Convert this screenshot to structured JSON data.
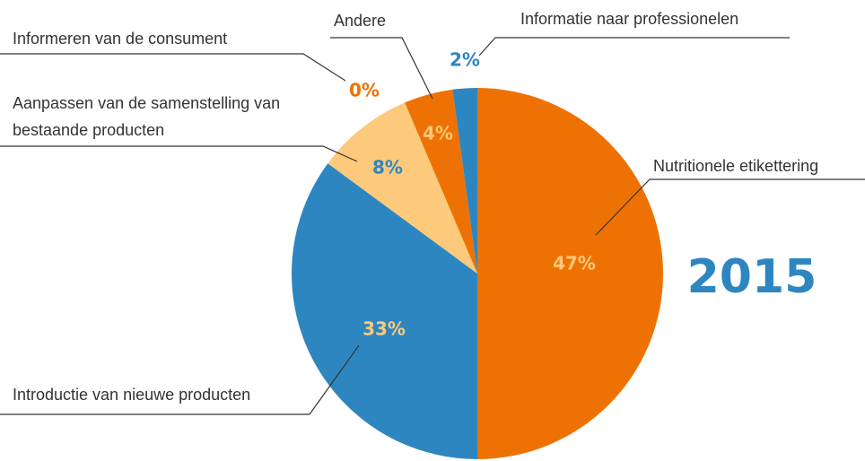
{
  "chart_data": {
    "type": "pie",
    "categories": [
      "Nutritionele etikettering",
      "Introductie van nieuwe producten",
      "Aanpassen van de samenstelling van bestaande producten",
      "Informeren van de consument",
      "Andere",
      "Informatie naar professionelen"
    ],
    "values": [
      47,
      33,
      8,
      0,
      4,
      2
    ],
    "value_labels": [
      "47%",
      "33%",
      "8%",
      "0%",
      "4%",
      "2%"
    ],
    "colors": [
      "#ee7203",
      "#2e86c1",
      "#fdc97a",
      "#ee7203",
      "#ee7203",
      "#2e86c1"
    ],
    "annotation": "2015"
  }
}
